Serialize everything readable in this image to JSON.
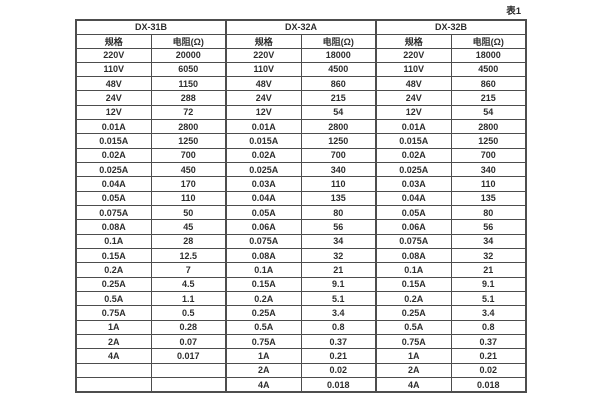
{
  "page": {
    "caption": "表1"
  },
  "colors": {
    "border": "#4d4d4d",
    "text": "#2e2e2e",
    "background": "#ffffff"
  },
  "table": {
    "groups": [
      {
        "name": "DX-31B"
      },
      {
        "name": "DX-32A"
      },
      {
        "name": "DX-32B"
      }
    ],
    "col_headers": {
      "spec": "规格",
      "resistance": "电阻(Ω)"
    },
    "rows": [
      [
        "220V",
        "20000",
        "220V",
        "18000",
        "220V",
        "18000"
      ],
      [
        "110V",
        "6050",
        "110V",
        "4500",
        "110V",
        "4500"
      ],
      [
        "48V",
        "1150",
        "48V",
        "860",
        "48V",
        "860"
      ],
      [
        "24V",
        "288",
        "24V",
        "215",
        "24V",
        "215"
      ],
      [
        "12V",
        "72",
        "12V",
        "54",
        "12V",
        "54"
      ],
      [
        "0.01A",
        "2800",
        "0.01A",
        "2800",
        "0.01A",
        "2800"
      ],
      [
        "0.015A",
        "1250",
        "0.015A",
        "1250",
        "0.015A",
        "1250"
      ],
      [
        "0.02A",
        "700",
        "0.02A",
        "700",
        "0.02A",
        "700"
      ],
      [
        "0.025A",
        "450",
        "0.025A",
        "340",
        "0.025A",
        "340"
      ],
      [
        "0.04A",
        "170",
        "0.03A",
        "110",
        "0.03A",
        "110"
      ],
      [
        "0.05A",
        "110",
        "0.04A",
        "135",
        "0.04A",
        "135"
      ],
      [
        "0.075A",
        "50",
        "0.05A",
        "80",
        "0.05A",
        "80"
      ],
      [
        "0.08A",
        "45",
        "0.06A",
        "56",
        "0.06A",
        "56"
      ],
      [
        "0.1A",
        "28",
        "0.075A",
        "34",
        "0.075A",
        "34"
      ],
      [
        "0.15A",
        "12.5",
        "0.08A",
        "32",
        "0.08A",
        "32"
      ],
      [
        "0.2A",
        "7",
        "0.1A",
        "21",
        "0.1A",
        "21"
      ],
      [
        "0.25A",
        "4.5",
        "0.15A",
        "9.1",
        "0.15A",
        "9.1"
      ],
      [
        "0.5A",
        "1.1",
        "0.2A",
        "5.1",
        "0.2A",
        "5.1"
      ],
      [
        "0.75A",
        "0.5",
        "0.25A",
        "3.4",
        "0.25A",
        "3.4"
      ],
      [
        "1A",
        "0.28",
        "0.5A",
        "0.8",
        "0.5A",
        "0.8"
      ],
      [
        "2A",
        "0.07",
        "0.75A",
        "0.37",
        "0.75A",
        "0.37"
      ],
      [
        "4A",
        "0.017",
        "1A",
        "0.21",
        "1A",
        "0.21"
      ],
      [
        "",
        "",
        "2A",
        "0.02",
        "2A",
        "0.02"
      ],
      [
        "",
        "",
        "4A",
        "0.018",
        "4A",
        "0.018"
      ]
    ]
  }
}
